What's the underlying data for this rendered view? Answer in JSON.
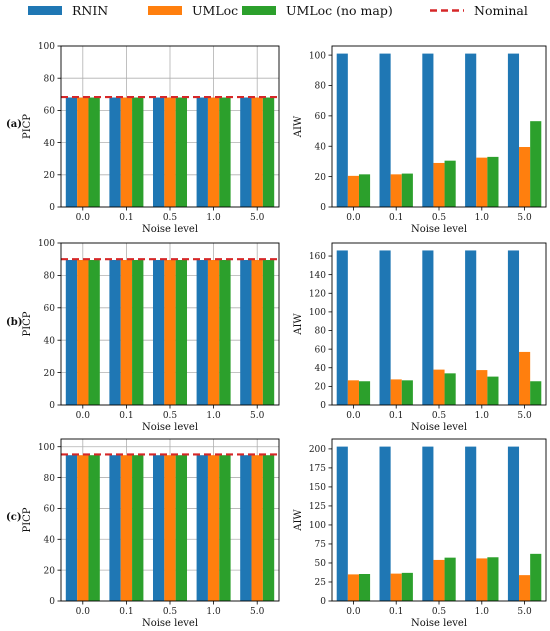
{
  "legend": [
    {
      "name": "RNIN",
      "color": "#1f77b4",
      "kind": "patch"
    },
    {
      "name": "UMLoc",
      "color": "#ff7f0e",
      "kind": "patch"
    },
    {
      "name": "UMLoc (no map)",
      "color": "#2ca02c",
      "kind": "patch"
    },
    {
      "name": "Nominal",
      "color": "#d62728",
      "kind": "dashed-line"
    }
  ],
  "row_labels": [
    "(a)",
    "(b)",
    "(c)"
  ],
  "chart_data": [
    {
      "type": "bar",
      "row": "(a)",
      "categories": [
        "0.0",
        "0.1",
        "0.5",
        "1.0",
        "5.0"
      ],
      "series": [
        {
          "name": "RNIN",
          "color": "#1f77b4",
          "values": [
            68,
            68,
            68,
            68,
            68
          ]
        },
        {
          "name": "UMLoc",
          "color": "#ff7f0e",
          "values": [
            68,
            68,
            68,
            68,
            68
          ]
        },
        {
          "name": "UMLoc (no map)",
          "color": "#2ca02c",
          "values": [
            68,
            68,
            68,
            68,
            68
          ]
        }
      ],
      "nominal": 68.27,
      "xlabel": "Noise level",
      "ylabel": "PICP",
      "ylim": [
        0,
        100
      ],
      "yticks": [
        0,
        20,
        40,
        60,
        80,
        100
      ],
      "grid": true
    },
    {
      "type": "bar",
      "row": "(a)",
      "categories": [
        "0.0",
        "0.1",
        "0.5",
        "1.0",
        "5.0"
      ],
      "series": [
        {
          "name": "RNIN",
          "color": "#1f77b4",
          "values": [
            101,
            101,
            101,
            101,
            101
          ]
        },
        {
          "name": "UMLoc",
          "color": "#ff7f0e",
          "values": [
            20.5,
            21.5,
            29,
            32.5,
            39.5
          ]
        },
        {
          "name": "UMLoc (no map)",
          "color": "#2ca02c",
          "values": [
            21.5,
            22,
            30.5,
            33,
            56.5
          ]
        }
      ],
      "xlabel": "Noise level",
      "ylabel": "AIW",
      "ylim": [
        0,
        106
      ],
      "yticks": [
        0,
        20,
        40,
        60,
        80,
        100
      ],
      "grid": false
    },
    {
      "type": "bar",
      "row": "(b)",
      "categories": [
        "0.0",
        "0.1",
        "0.5",
        "1.0",
        "5.0"
      ],
      "series": [
        {
          "name": "RNIN",
          "color": "#1f77b4",
          "values": [
            89.5,
            89.5,
            89.5,
            89.5,
            89.5
          ]
        },
        {
          "name": "UMLoc",
          "color": "#ff7f0e",
          "values": [
            89.5,
            89.5,
            89.5,
            89.5,
            89.5
          ]
        },
        {
          "name": "UMLoc (no map)",
          "color": "#2ca02c",
          "values": [
            89.5,
            89.5,
            89.5,
            89.5,
            89.5
          ]
        }
      ],
      "nominal": 90,
      "xlabel": "Noise level",
      "ylabel": "PICP",
      "ylim": [
        0,
        100
      ],
      "yticks": [
        0,
        20,
        40,
        60,
        80,
        100
      ],
      "grid": true
    },
    {
      "type": "bar",
      "row": "(b)",
      "categories": [
        "0.0",
        "0.1",
        "0.5",
        "1.0",
        "5.0"
      ],
      "series": [
        {
          "name": "RNIN",
          "color": "#1f77b4",
          "values": [
            166,
            166,
            166,
            166,
            166
          ]
        },
        {
          "name": "UMLoc",
          "color": "#ff7f0e",
          "values": [
            26.5,
            27.5,
            38,
            37.5,
            57
          ]
        },
        {
          "name": "UMLoc (no map)",
          "color": "#2ca02c",
          "values": [
            25.5,
            26.5,
            34,
            30.5,
            25.5
          ]
        }
      ],
      "xlabel": "Noise level",
      "ylabel": "AIW",
      "ylim": [
        0,
        174
      ],
      "yticks": [
        0,
        20,
        40,
        60,
        80,
        100,
        120,
        140,
        160
      ],
      "grid": false
    },
    {
      "type": "bar",
      "row": "(c)",
      "categories": [
        "0.0",
        "0.1",
        "0.5",
        "1.0",
        "5.0"
      ],
      "series": [
        {
          "name": "RNIN",
          "color": "#1f77b4",
          "values": [
            94.5,
            94.5,
            94.5,
            94.5,
            94.5
          ]
        },
        {
          "name": "UMLoc",
          "color": "#ff7f0e",
          "values": [
            94.5,
            94.5,
            94.5,
            94.5,
            94.5
          ]
        },
        {
          "name": "UMLoc (no map)",
          "color": "#2ca02c",
          "values": [
            94.5,
            94.5,
            94.5,
            94.5,
            94.5
          ]
        }
      ],
      "nominal": 95,
      "xlabel": "Noise level",
      "ylabel": "PICP",
      "ylim": [
        0,
        105
      ],
      "yticks": [
        0,
        20,
        40,
        60,
        80,
        100
      ],
      "grid": true
    },
    {
      "type": "bar",
      "row": "(c)",
      "categories": [
        "0.0",
        "0.1",
        "0.5",
        "1.0",
        "5.0"
      ],
      "series": [
        {
          "name": "RNIN",
          "color": "#1f77b4",
          "values": [
            203,
            203,
            203,
            203,
            203
          ]
        },
        {
          "name": "UMLoc",
          "color": "#ff7f0e",
          "values": [
            35,
            36,
            54,
            56,
            34
          ]
        },
        {
          "name": "UMLoc (no map)",
          "color": "#2ca02c",
          "values": [
            35.5,
            37,
            57,
            57.5,
            62
          ]
        }
      ],
      "xlabel": "Noise level",
      "ylabel": "AIW",
      "ylim": [
        0,
        213
      ],
      "yticks": [
        0,
        25,
        50,
        75,
        100,
        125,
        150,
        175,
        200
      ],
      "grid": false
    }
  ]
}
